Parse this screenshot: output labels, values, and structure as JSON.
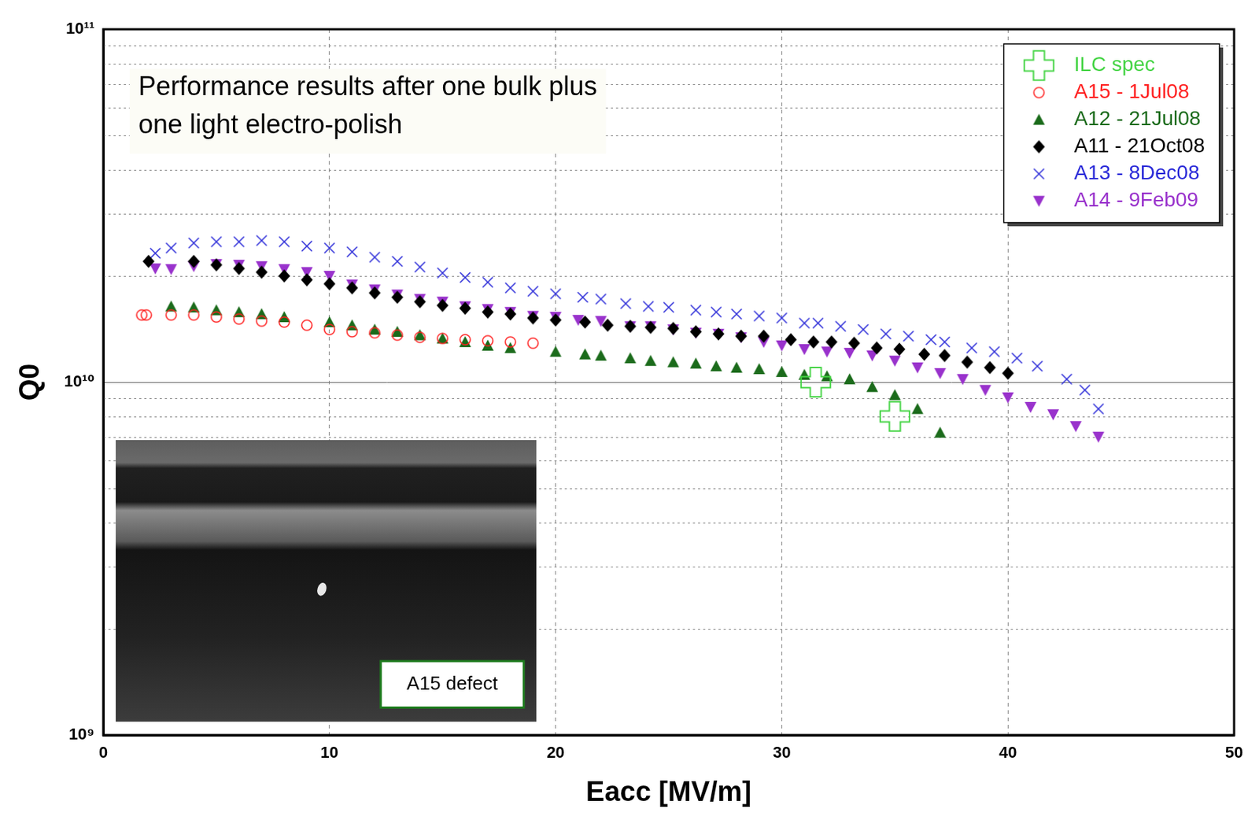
{
  "chart_data": {
    "type": "scatter",
    "x_label": "Eacc [MV/m]",
    "y_label": "Q0",
    "annotations": [
      "Performance results after one bulk plus one light electro-polish",
      "A15 defect"
    ],
    "xlim": [
      0,
      50
    ],
    "xticks": [
      0,
      10,
      20,
      30,
      40,
      50
    ],
    "ylim": [
      1000000000.0,
      100000000000.0
    ],
    "yticks": [
      {
        "value": 1000000000.0,
        "label": "10⁹"
      },
      {
        "value": 10000000000.0,
        "label": "10¹⁰"
      },
      {
        "value": 100000000000.0,
        "label": "10¹¹"
      }
    ],
    "log": "y",
    "grid": true,
    "legend": "top-right",
    "series": [
      {
        "name": "ILC spec",
        "color": "#44d444",
        "marker": "plus",
        "x": [
          31.5,
          35
        ],
        "values": [
          10000000000.0,
          8000000000.0
        ]
      },
      {
        "name": "A15 - 1Jul08",
        "color": "#ff2020",
        "marker": "open_circle",
        "x": [
          1.7,
          1.9,
          3,
          4,
          5,
          6,
          7,
          8,
          9,
          10,
          11,
          12,
          13,
          14,
          15,
          16,
          17,
          18,
          19
        ],
        "values": [
          15500000000.0,
          15500000000.0,
          15500000000.0,
          15500000000.0,
          15300000000.0,
          15100000000.0,
          14900000000.0,
          14800000000.0,
          14500000000.0,
          14100000000.0,
          13900000000.0,
          13800000000.0,
          13600000000.0,
          13400000000.0,
          13300000000.0,
          13200000000.0,
          13100000000.0,
          13000000000.0,
          12900000000.0
        ]
      },
      {
        "name": "A12 - 21Jul08",
        "color": "#1b6b1b",
        "marker": "triangle",
        "x": [
          3,
          4,
          5,
          6,
          7,
          8,
          10,
          11,
          12,
          13,
          14,
          15,
          16,
          17,
          18,
          20,
          21.3,
          22,
          23.3,
          24.2,
          25.2,
          26.2,
          27.1,
          28,
          29,
          30,
          31,
          32,
          33,
          34,
          35,
          36,
          37
        ],
        "values": [
          16400000000.0,
          16300000000.0,
          16000000000.0,
          15800000000.0,
          15600000000.0,
          15300000000.0,
          14800000000.0,
          14500000000.0,
          14100000000.0,
          13900000000.0,
          13600000000.0,
          13300000000.0,
          13000000000.0,
          12700000000.0,
          12500000000.0,
          12200000000.0,
          12000000000.0,
          11900000000.0,
          11700000000.0,
          11500000000.0,
          11400000000.0,
          11300000000.0,
          11100000000.0,
          11000000000.0,
          10900000000.0,
          10700000000.0,
          10500000000.0,
          10400000000.0,
          10200000000.0,
          9700000000.0,
          9200000000.0,
          8400000000.0,
          7200000000.0
        ]
      },
      {
        "name": "A11 - 21Oct08",
        "color": "#000000",
        "marker": "diamond",
        "x": [
          2,
          4,
          5,
          6,
          7,
          8,
          9,
          10,
          11,
          12,
          13,
          14,
          15,
          16,
          17,
          18,
          19,
          20,
          21.3,
          22.3,
          23.3,
          24.2,
          25.2,
          26.2,
          27.2,
          28.2,
          29.2,
          30.4,
          31.4,
          32.2,
          33.2,
          34.2,
          35.2,
          36.3,
          37.2,
          38.2,
          39.2,
          40
        ],
        "values": [
          22000000000.0,
          22000000000.0,
          21500000000.0,
          21000000000.0,
          20500000000.0,
          20000000000.0,
          19500000000.0,
          19000000000.0,
          18500000000.0,
          17900000000.0,
          17400000000.0,
          16900000000.0,
          16500000000.0,
          16200000000.0,
          15800000000.0,
          15600000000.0,
          15200000000.0,
          15000000000.0,
          14800000000.0,
          14500000000.0,
          14400000000.0,
          14300000000.0,
          14200000000.0,
          13900000000.0,
          13700000000.0,
          13500000000.0,
          13500000000.0,
          13200000000.0,
          13000000000.0,
          13000000000.0,
          12900000000.0,
          12500000000.0,
          12400000000.0,
          12000000000.0,
          11900000000.0,
          11400000000.0,
          11000000000.0,
          10600000000.0
        ]
      },
      {
        "name": "A13 - 8Dec08",
        "color": "#2a2ad8",
        "marker": "x",
        "x": [
          2.3,
          3,
          4,
          5,
          6,
          7,
          8,
          9,
          10,
          11,
          12,
          13,
          14,
          15,
          16,
          17,
          18,
          19,
          20,
          21.2,
          22,
          23.1,
          24.1,
          25,
          26.2,
          27.1,
          28,
          29,
          30,
          31,
          31.6,
          32.6,
          33.6,
          34.6,
          35.6,
          36.6,
          37.2,
          38.4,
          39.4,
          40.4,
          41.3,
          42.6,
          43.4,
          44
        ],
        "values": [
          23200000000.0,
          24000000000.0,
          24800000000.0,
          25000000000.0,
          25000000000.0,
          25200000000.0,
          25000000000.0,
          24300000000.0,
          24000000000.0,
          23400000000.0,
          22600000000.0,
          22000000000.0,
          21200000000.0,
          20400000000.0,
          19800000000.0,
          19200000000.0,
          18500000000.0,
          18100000000.0,
          17800000000.0,
          17400000000.0,
          17200000000.0,
          16700000000.0,
          16400000000.0,
          16300000000.0,
          16000000000.0,
          15800000000.0,
          15600000000.0,
          15400000000.0,
          15200000000.0,
          14700000000.0,
          14700000000.0,
          14400000000.0,
          14100000000.0,
          13700000000.0,
          13500000000.0,
          13200000000.0,
          13000000000.0,
          12500000000.0,
          12200000000.0,
          11700000000.0,
          11100000000.0,
          10200000000.0,
          9500000000.0,
          8400000000.0
        ]
      },
      {
        "name": "A14 - 9Feb09",
        "color": "#9932cc",
        "marker": "triangle_down",
        "x": [
          2.3,
          3,
          4,
          5,
          6,
          7,
          8,
          9,
          10,
          11,
          12,
          13,
          14,
          15,
          16,
          17,
          18,
          19,
          20,
          21,
          22,
          23.3,
          24.2,
          25.2,
          26.2,
          27.2,
          28.2,
          29.2,
          30,
          31,
          32,
          33,
          34,
          35,
          36,
          37,
          38,
          39,
          40,
          41,
          42,
          43,
          44
        ],
        "values": [
          21000000000.0,
          20900000000.0,
          21300000000.0,
          21600000000.0,
          21500000000.0,
          21300000000.0,
          20900000000.0,
          20500000000.0,
          20000000000.0,
          18900000000.0,
          18300000000.0,
          17700000000.0,
          17200000000.0,
          16900000000.0,
          16400000000.0,
          16100000000.0,
          15800000000.0,
          15400000000.0,
          15300000000.0,
          15000000000.0,
          14900000000.0,
          14400000000.0,
          14400000000.0,
          14100000000.0,
          13800000000.0,
          13700000000.0,
          13400000000.0,
          13000000000.0,
          12700000000.0,
          12400000000.0,
          12200000000.0,
          12100000000.0,
          11900000000.0,
          11500000000.0,
          11000000000.0,
          10600000000.0,
          10200000000.0,
          9500000000.0,
          9050000000.0,
          8500000000.0,
          8100000000.0,
          7500000000.0,
          7000000000.0
        ]
      }
    ]
  }
}
